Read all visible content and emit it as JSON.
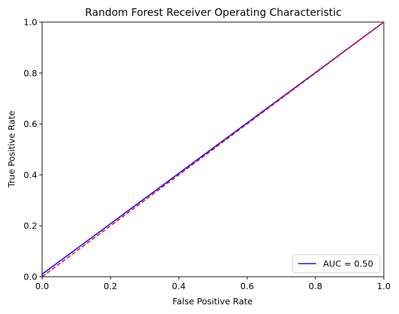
{
  "chart_data": {
    "type": "line",
    "title": "Random Forest Receiver Operating Characteristic",
    "xlabel": "False Positive Rate",
    "ylabel": "True Positive Rate",
    "xlim": [
      0,
      1
    ],
    "ylim": [
      0,
      1
    ],
    "xticks": [
      "0.0",
      "0.2",
      "0.4",
      "0.6",
      "0.8",
      "1.0"
    ],
    "yticks": [
      "0.0",
      "0.2",
      "0.4",
      "0.6",
      "0.8",
      "1.0"
    ],
    "grid": false,
    "legend_position": "lower-right",
    "series": [
      {
        "name": "AUC = 0.50",
        "color": "#0000ff",
        "style": "solid",
        "x": [
          0.0,
          0.0,
          1.0
        ],
        "y": [
          0.0,
          0.01,
          1.0
        ]
      },
      {
        "color": "#ff0000",
        "style": "dashed",
        "x": [
          0.0,
          1.0
        ],
        "y": [
          0.0,
          1.0
        ]
      }
    ]
  }
}
